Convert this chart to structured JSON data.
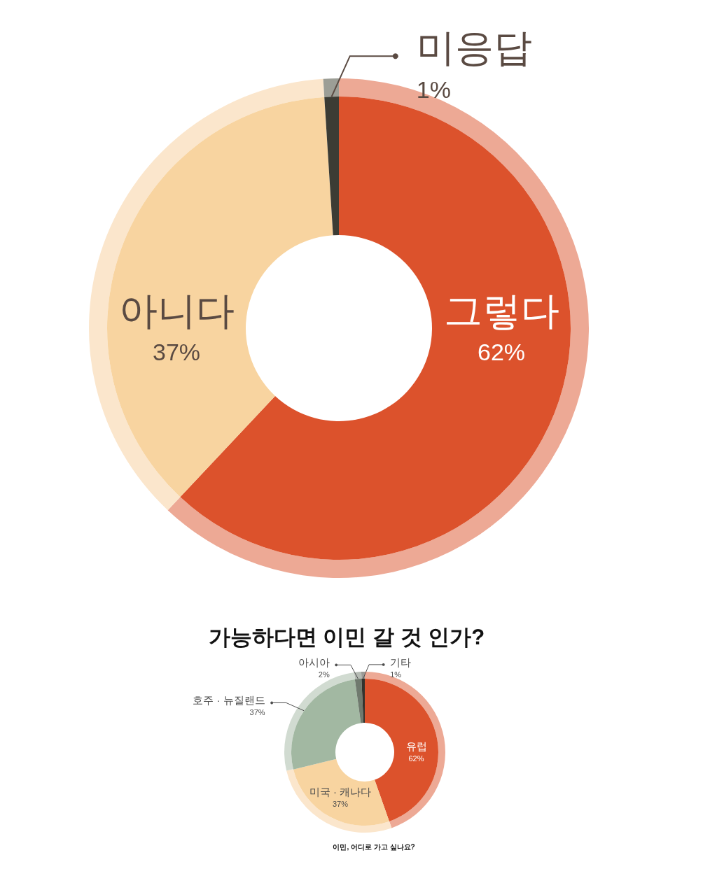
{
  "chart_data": [
    {
      "type": "donut",
      "title": "가능하다면 이민 갈 것 인가?",
      "categories": [
        "그렇다",
        "아니다",
        "미응답"
      ],
      "series": [
        {
          "values": [
            62,
            37,
            1
          ],
          "value_labels": [
            "62%",
            "37%",
            "1%"
          ],
          "colors": [
            "#dc522c",
            "#f8d4a0",
            "#3c3c34"
          ]
        },
        {
          "values": [
            62,
            37,
            1
          ],
          "colors": [
            "#eda995",
            "#fbe6cc",
            "#9c9e96"
          ]
        }
      ]
    },
    {
      "type": "donut",
      "title": "이민, 어디로 가고 싶나요?",
      "categories": [
        "유럽",
        "미국 · 캐나다",
        "호주 · 뉴질랜드",
        "아시아",
        "기타"
      ],
      "series": [
        {
          "values": [
            62,
            37,
            37,
            2,
            1
          ],
          "value_labels": [
            "62%",
            "37%",
            "37%",
            "2%",
            "1%"
          ],
          "colors": [
            "#dc522c",
            "#f8d4a0",
            "#a2b8a2",
            "#6f7a6e",
            "#33332d"
          ]
        },
        {
          "values": [
            44.6,
            26.7,
            26.6,
            1.4,
            0.7
          ],
          "colors": [
            "#eda995",
            "#fbe6cc",
            "#d1dbd1",
            "#b4bab3",
            "#9a9a96"
          ]
        }
      ]
    }
  ]
}
